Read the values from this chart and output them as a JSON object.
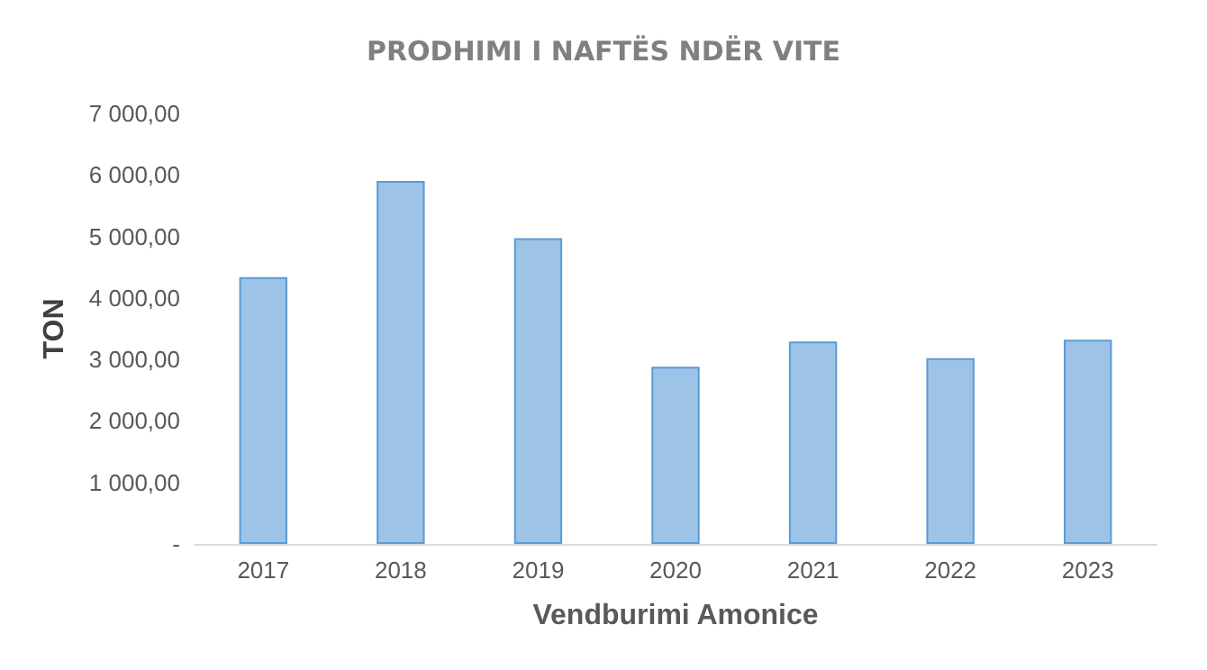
{
  "chart_data": {
    "type": "bar",
    "title": "PRODHIMI I NAFTËS NDËR VITE",
    "xlabel": "Vendburimi Amonice",
    "ylabel": "TON",
    "categories": [
      "2017",
      "2018",
      "2019",
      "2020",
      "2021",
      "2022",
      "2023"
    ],
    "values": [
      4340,
      5900,
      4970,
      2880,
      3290,
      3020,
      3320
    ],
    "color": "#9dc3e6",
    "ylim": [
      0,
      7000
    ],
    "yticks": [
      {
        "value": 0,
        "label": "-"
      },
      {
        "value": 1000,
        "label": "1 000,00"
      },
      {
        "value": 2000,
        "label": "2 000,00"
      },
      {
        "value": 3000,
        "label": "3 000,00"
      },
      {
        "value": 4000,
        "label": "4 000,00"
      },
      {
        "value": 5000,
        "label": "5 000,00"
      },
      {
        "value": 6000,
        "label": "6 000,00"
      },
      {
        "value": 7000,
        "label": "7 000,00"
      }
    ],
    "grid": false
  }
}
